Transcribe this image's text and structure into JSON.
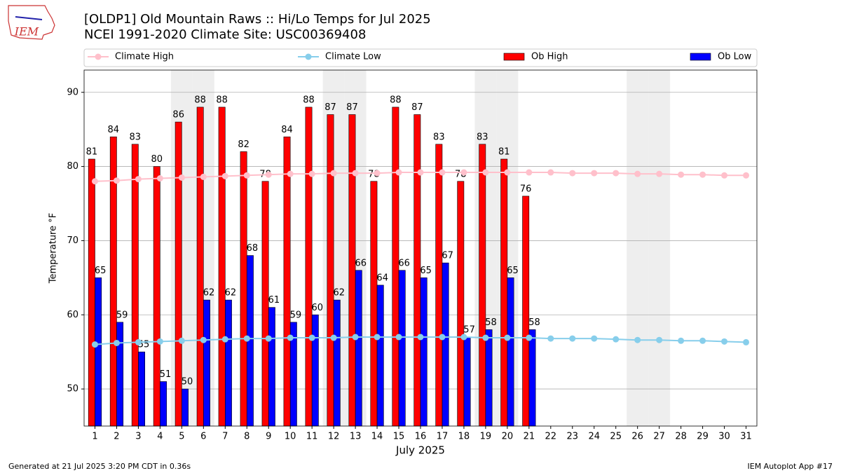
{
  "chart_data": {
    "type": "bar",
    "title": "[OLDP1] Old Mountain Raws :: Hi/Lo Temps for Jul 2025",
    "subtitle": "NCEI 1991-2020 Climate Site: USC00369408",
    "logo_text": "IEM",
    "xlabel": "July 2025",
    "ylabel": "Temperature °F",
    "footer_left": "Generated at 21 Jul 2025 3:20 PM CDT in 0.36s",
    "footer_right": "IEM Autoplot App #17",
    "x": [
      1,
      2,
      3,
      4,
      5,
      6,
      7,
      8,
      9,
      10,
      11,
      12,
      13,
      14,
      15,
      16,
      17,
      18,
      19,
      20,
      21,
      22,
      23,
      24,
      25,
      26,
      27,
      28,
      29,
      30,
      31
    ],
    "xlim": [
      0.5,
      31.5
    ],
    "xticks": [
      1,
      2,
      3,
      4,
      5,
      6,
      7,
      8,
      9,
      10,
      11,
      12,
      13,
      14,
      15,
      16,
      17,
      18,
      19,
      20,
      21,
      22,
      23,
      24,
      25,
      26,
      27,
      28,
      29,
      30,
      31
    ],
    "ylim": [
      45,
      93
    ],
    "yticks": [
      50,
      60,
      70,
      80,
      90
    ],
    "grid": true,
    "highlight_days": [
      5,
      6,
      12,
      13,
      19,
      20,
      26,
      27
    ],
    "highlight_color": "#eeeeee",
    "series": [
      {
        "name": "Climate High",
        "type": "line",
        "color": "#ffc0cb",
        "values": [
          78.0,
          78.1,
          78.3,
          78.4,
          78.5,
          78.6,
          78.7,
          78.8,
          78.9,
          79.0,
          79.0,
          79.1,
          79.1,
          79.1,
          79.2,
          79.2,
          79.2,
          79.2,
          79.2,
          79.2,
          79.2,
          79.2,
          79.1,
          79.1,
          79.1,
          79.0,
          79.0,
          78.9,
          78.9,
          78.8,
          78.8
        ]
      },
      {
        "name": "Climate Low",
        "type": "line",
        "color": "#87ceeb",
        "values": [
          56.0,
          56.2,
          56.3,
          56.4,
          56.5,
          56.6,
          56.7,
          56.8,
          56.8,
          56.9,
          56.9,
          56.9,
          57.0,
          57.0,
          57.0,
          57.0,
          57.0,
          57.0,
          56.9,
          56.9,
          56.9,
          56.8,
          56.8,
          56.8,
          56.7,
          56.6,
          56.6,
          56.5,
          56.5,
          56.4,
          56.3
        ]
      },
      {
        "name": "Ob High",
        "type": "bar",
        "color": "#ff0000",
        "values": [
          81,
          84,
          83,
          80,
          86,
          88,
          88,
          82,
          78,
          84,
          88,
          87,
          87,
          78,
          88,
          87,
          83,
          78,
          83,
          81,
          76,
          null,
          null,
          null,
          null,
          null,
          null,
          null,
          null,
          null,
          null
        ]
      },
      {
        "name": "Ob Low",
        "type": "bar",
        "color": "#0000ff",
        "values": [
          65,
          59,
          55,
          51,
          50,
          62,
          62,
          68,
          61,
          59,
          60,
          62,
          66,
          64,
          66,
          65,
          67,
          57,
          58,
          65,
          58,
          null,
          null,
          null,
          null,
          null,
          null,
          null,
          null,
          null,
          null
        ]
      }
    ]
  }
}
